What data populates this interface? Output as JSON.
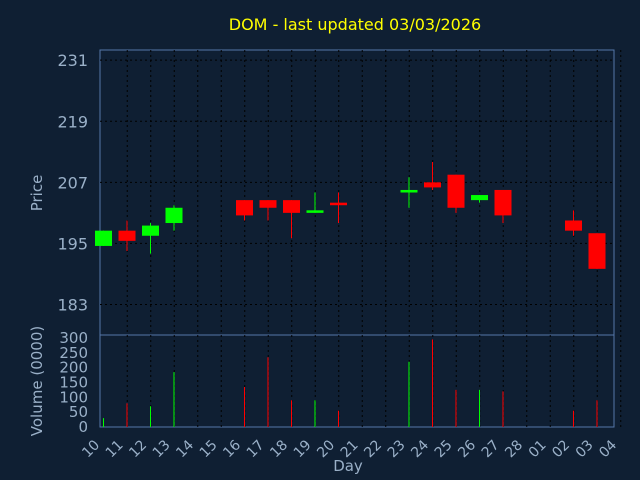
{
  "chart_data": {
    "type": "candlestick",
    "title": "DOM - last updated 03/03/2026",
    "price_axis": {
      "label": "Price",
      "ticks": [
        183,
        195,
        207,
        219,
        231
      ]
    },
    "volume_axis": {
      "label": "Volume (0000)",
      "ticks": [
        0,
        50,
        100,
        150,
        200,
        250,
        300
      ]
    },
    "x_axis": {
      "label": "Day",
      "ticks": [
        "10",
        "11",
        "12",
        "13",
        "14",
        "15",
        "16",
        "17",
        "18",
        "19",
        "20",
        "21",
        "22",
        "23",
        "24",
        "25",
        "26",
        "27",
        "28",
        "01",
        "02",
        "03",
        "04"
      ]
    },
    "grid": true,
    "colors": {
      "up": "#00ff00",
      "down": "#ff0000",
      "title": "#ffff00",
      "axis_text": "#9ab0c8",
      "background": "#0f1f33"
    },
    "candles": [
      {
        "day": "10",
        "open": 194.5,
        "high": 197.5,
        "low": 194.5,
        "close": 197.5,
        "volume": 30
      },
      {
        "day": "11",
        "open": 197.5,
        "high": 199.5,
        "low": 193.5,
        "close": 195.5,
        "volume": 80
      },
      {
        "day": "12",
        "open": 196.5,
        "high": 199.0,
        "low": 193.0,
        "close": 198.5,
        "volume": 70
      },
      {
        "day": "13",
        "open": 199.0,
        "high": 202.5,
        "low": 197.5,
        "close": 202.0,
        "volume": 185
      },
      {
        "day": "16",
        "open": 203.5,
        "high": 203.5,
        "low": 199.5,
        "close": 200.5,
        "volume": 135
      },
      {
        "day": "17",
        "open": 203.5,
        "high": 203.5,
        "low": 199.5,
        "close": 202.0,
        "volume": 235
      },
      {
        "day": "18",
        "open": 203.5,
        "high": 203.5,
        "low": 196.0,
        "close": 201.0,
        "volume": 90
      },
      {
        "day": "19",
        "open": 201.0,
        "high": 205.0,
        "low": 201.0,
        "close": 201.5,
        "volume": 90
      },
      {
        "day": "20",
        "open": 203.0,
        "high": 205.0,
        "low": 199.0,
        "close": 202.5,
        "volume": 55
      },
      {
        "day": "23",
        "open": 205.0,
        "high": 208.0,
        "low": 202.0,
        "close": 205.5,
        "volume": 220
      },
      {
        "day": "24",
        "open": 207.0,
        "high": 211.0,
        "low": 205.5,
        "close": 206.0,
        "volume": 295
      },
      {
        "day": "25",
        "open": 208.5,
        "high": 208.5,
        "low": 201.0,
        "close": 202.0,
        "volume": 125
      },
      {
        "day": "26",
        "open": 203.5,
        "high": 204.5,
        "low": 203.0,
        "close": 204.5,
        "volume": 125
      },
      {
        "day": "27",
        "open": 205.5,
        "high": 205.5,
        "low": 199.0,
        "close": 200.5,
        "volume": 120
      },
      {
        "day": "02",
        "open": 199.5,
        "high": 201.5,
        "low": 196.5,
        "close": 197.5,
        "volume": 55
      },
      {
        "day": "03",
        "open": 197.0,
        "high": 197.0,
        "low": 190.0,
        "close": 190.0,
        "volume": 90
      }
    ]
  }
}
